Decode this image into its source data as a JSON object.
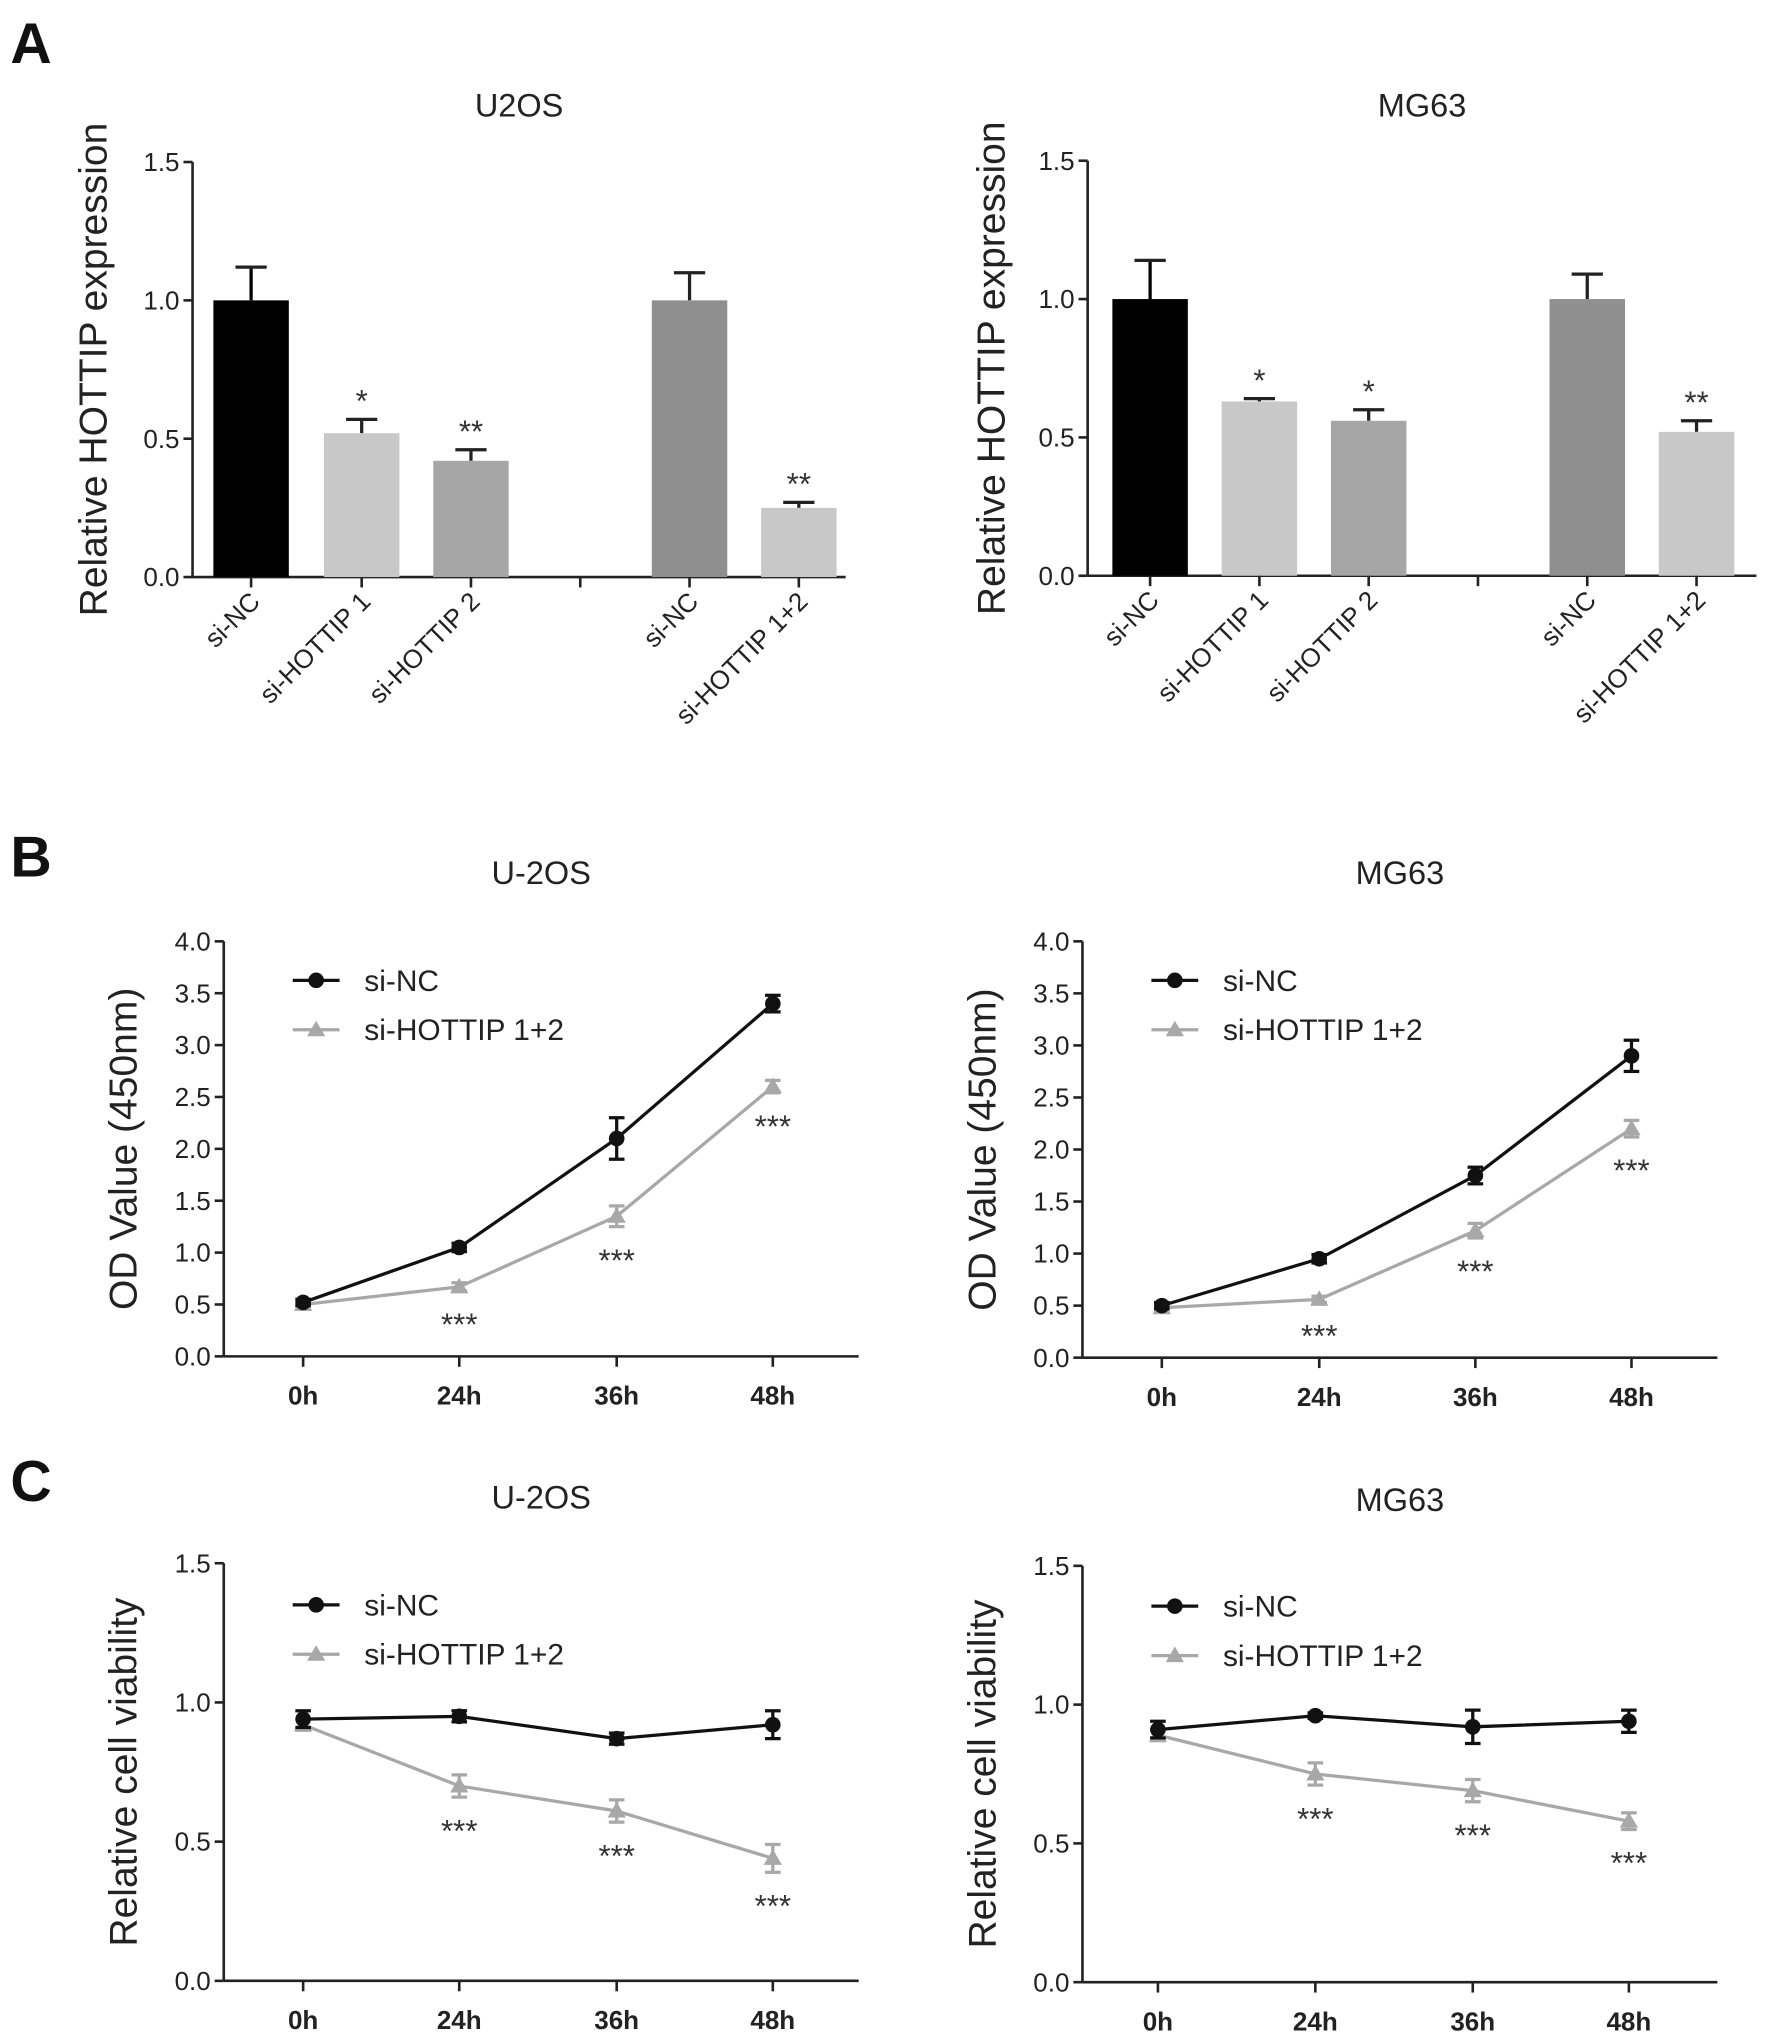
{
  "panel_letters": [
    "A",
    "B",
    "C"
  ],
  "chart_data": [
    {
      "type": "bar",
      "panel": "A",
      "title": "U2OS",
      "ylabel": "Relative HOTTIP expression",
      "ylim": [
        0,
        1.5
      ],
      "yticks": [
        "0.0",
        "0.5",
        "1.0",
        "1.5"
      ],
      "categories": [
        "si-NC",
        "si-HOTTIP 1",
        "si-HOTTIP 2",
        "si-NC",
        "si-HOTTIP 1+2"
      ],
      "values": [
        1.0,
        0.52,
        0.42,
        1.0,
        0.25
      ],
      "errors": [
        0.12,
        0.05,
        0.04,
        0.1,
        0.02
      ],
      "colors": [
        "#000000",
        "#c8c8c8",
        "#a6a6a6",
        "#8f8f8f",
        "#c8c8c8"
      ],
      "annotations": [
        "",
        "*",
        "**",
        "",
        "**"
      ]
    },
    {
      "type": "bar",
      "panel": "A",
      "title": "MG63",
      "ylabel": "Relative HOTTIP expression",
      "ylim": [
        0,
        1.5
      ],
      "yticks": [
        "0.0",
        "0.5",
        "1.0",
        "1.5"
      ],
      "categories": [
        "si-NC",
        "si-HOTTIP 1",
        "si-HOTTIP 2",
        "si-NC",
        "si-HOTTIP 1+2"
      ],
      "values": [
        1.0,
        0.63,
        0.56,
        1.0,
        0.52
      ],
      "errors": [
        0.14,
        0.01,
        0.04,
        0.09,
        0.04
      ],
      "colors": [
        "#000000",
        "#c8c8c8",
        "#a6a6a6",
        "#8f8f8f",
        "#c8c8c8"
      ],
      "annotations": [
        "",
        "*",
        "*",
        "",
        "**"
      ]
    },
    {
      "type": "line",
      "panel": "B",
      "title": "U-2OS",
      "ylabel": "OD Value (450nm)",
      "ylim": [
        0,
        4
      ],
      "yticks": [
        "0.0",
        "0.5",
        "1.0",
        "1.5",
        "2.0",
        "2.5",
        "3.0",
        "3.5",
        "4.0"
      ],
      "x": [
        "0h",
        "24h",
        "36h",
        "48h"
      ],
      "series": [
        {
          "name": "si-NC",
          "color": "#111111",
          "marker": "circle",
          "values": [
            0.52,
            1.05,
            2.1,
            3.4
          ],
          "errors": [
            0.03,
            0.04,
            0.2,
            0.08
          ]
        },
        {
          "name": "si-HOTTIP 1+2",
          "color": "#a8a8a8",
          "marker": "triangle",
          "values": [
            0.5,
            0.67,
            1.35,
            2.6
          ],
          "errors": [
            0.02,
            0.04,
            0.1,
            0.06
          ]
        }
      ],
      "annotations": [
        "",
        "***",
        "***",
        "***"
      ]
    },
    {
      "type": "line",
      "panel": "B",
      "title": "MG63",
      "ylabel": "OD Value (450nm)",
      "ylim": [
        0,
        4
      ],
      "yticks": [
        "0.0",
        "0.5",
        "1.0",
        "1.5",
        "2.0",
        "2.5",
        "3.0",
        "3.5",
        "4.0"
      ],
      "x": [
        "0h",
        "24h",
        "36h",
        "48h"
      ],
      "series": [
        {
          "name": "si-NC",
          "color": "#111111",
          "marker": "circle",
          "values": [
            0.5,
            0.95,
            1.75,
            2.9
          ],
          "errors": [
            0.03,
            0.04,
            0.08,
            0.15
          ]
        },
        {
          "name": "si-HOTTIP 1+2",
          "color": "#a8a8a8",
          "marker": "triangle",
          "values": [
            0.48,
            0.56,
            1.22,
            2.2
          ],
          "errors": [
            0.02,
            0.03,
            0.07,
            0.08
          ]
        }
      ],
      "annotations": [
        "",
        "***",
        "***",
        "***"
      ]
    },
    {
      "type": "line",
      "panel": "C",
      "title": "U-2OS",
      "ylabel": "Relative cell viability",
      "ylim": [
        0,
        1.5
      ],
      "yticks": [
        "0.0",
        "0.5",
        "1.0",
        "1.5"
      ],
      "x": [
        "0h",
        "24h",
        "36h",
        "48h"
      ],
      "series": [
        {
          "name": "si-NC",
          "color": "#111111",
          "marker": "circle",
          "values": [
            0.94,
            0.95,
            0.87,
            0.92
          ],
          "errors": [
            0.03,
            0.02,
            0.02,
            0.05
          ]
        },
        {
          "name": "si-HOTTIP 1+2",
          "color": "#a8a8a8",
          "marker": "triangle",
          "values": [
            0.92,
            0.7,
            0.61,
            0.44
          ],
          "errors": [
            0.02,
            0.04,
            0.04,
            0.05
          ]
        }
      ],
      "annotations": [
        "",
        "***",
        "***",
        "***"
      ]
    },
    {
      "type": "line",
      "panel": "C",
      "title": "MG63",
      "ylabel": "Relative cell viability",
      "ylim": [
        0,
        1.5
      ],
      "yticks": [
        "0.0",
        "0.5",
        "1.0",
        "1.5"
      ],
      "x": [
        "0h",
        "24h",
        "36h",
        "48h"
      ],
      "series": [
        {
          "name": "si-NC",
          "color": "#111111",
          "marker": "circle",
          "values": [
            0.91,
            0.96,
            0.92,
            0.94
          ],
          "errors": [
            0.03,
            0.01,
            0.06,
            0.04
          ]
        },
        {
          "name": "si-HOTTIP 1+2",
          "color": "#a8a8a8",
          "marker": "triangle",
          "values": [
            0.89,
            0.75,
            0.69,
            0.58
          ],
          "errors": [
            0.02,
            0.04,
            0.04,
            0.03
          ]
        }
      ],
      "annotations": [
        "",
        "***",
        "***",
        "***"
      ]
    }
  ]
}
